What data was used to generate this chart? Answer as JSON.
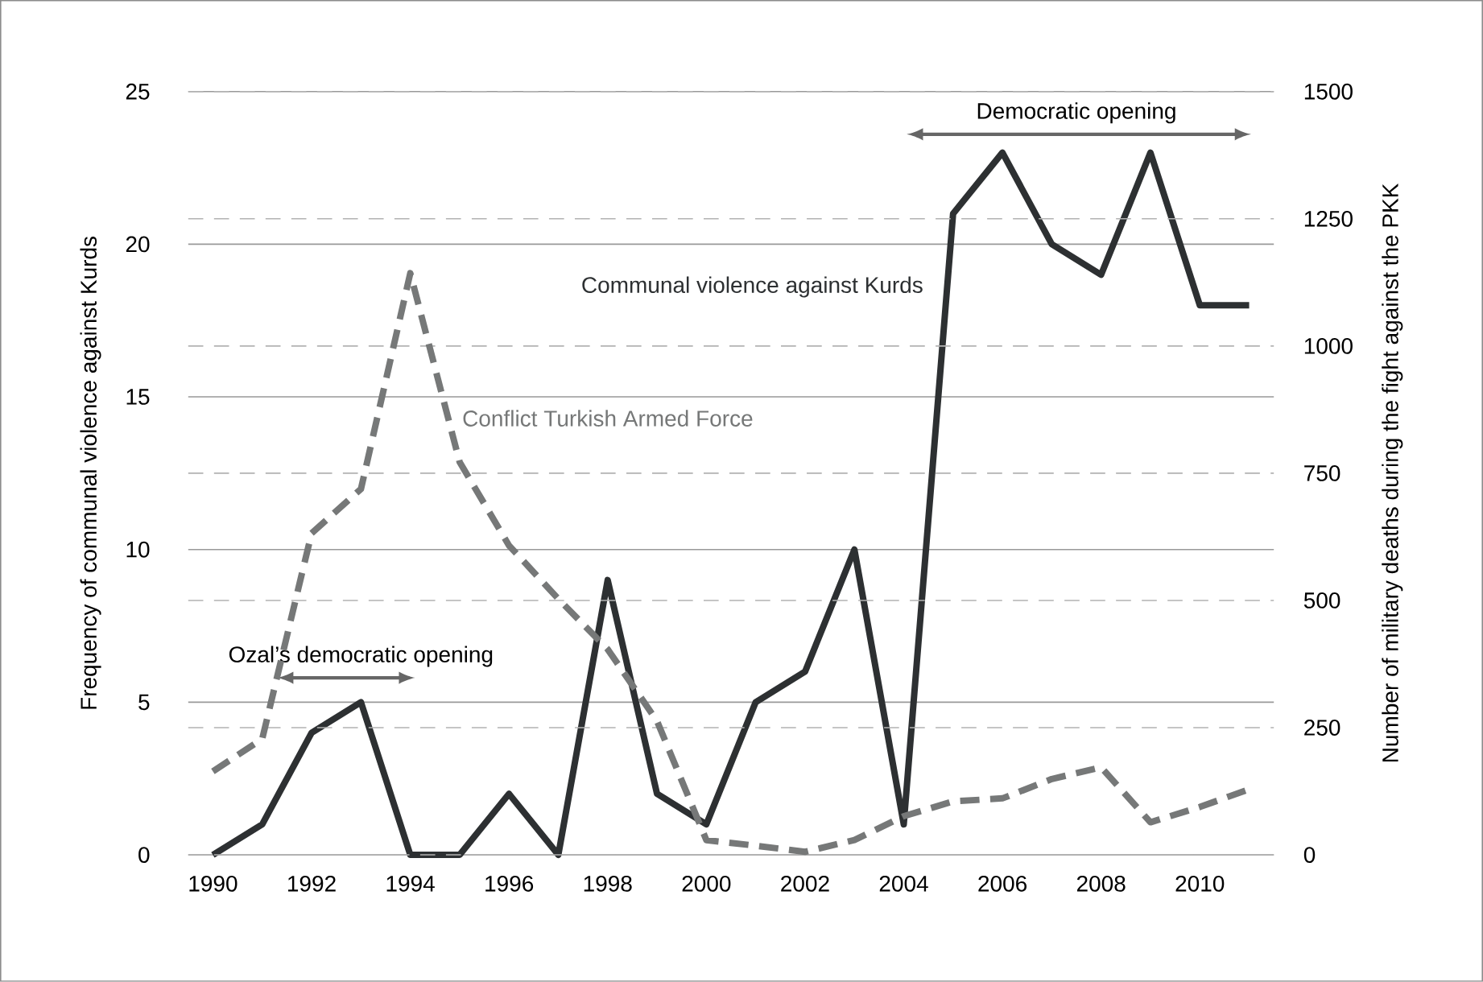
{
  "chart_data": {
    "type": "line",
    "ylabel": "Frequency of communal violence against Kurds",
    "y2label": "Number of military deaths during the fight against the PKK",
    "x": [
      1990,
      1991,
      1992,
      1993,
      1994,
      1995,
      1996,
      1997,
      1998,
      1999,
      2000,
      2001,
      2002,
      2003,
      2004,
      2005,
      2006,
      2007,
      2008,
      2009,
      2010,
      2011
    ],
    "xlim": [
      1989.5,
      2011.5
    ],
    "xticks": [
      1990,
      1992,
      1994,
      1996,
      1998,
      2000,
      2002,
      2004,
      2006,
      2008,
      2010
    ],
    "ylim": [
      0,
      25
    ],
    "yticks": [
      0,
      5,
      10,
      15,
      20,
      25
    ],
    "y2lim": [
      0,
      1500
    ],
    "y2ticks": [
      0,
      250,
      500,
      750,
      1000,
      1250,
      1500
    ],
    "grid": true,
    "series": [
      {
        "name": "Communal violence against Kurds",
        "color": "#2d3032",
        "line_style": "solid",
        "values": [
          0,
          1,
          4,
          5,
          0,
          0,
          2,
          0,
          9,
          2,
          1,
          5,
          6,
          10,
          1,
          21,
          23,
          20,
          19,
          23,
          18,
          18
        ]
      },
      {
        "name": "Conflict Turkish Armed Force",
        "color": "#767878",
        "line_style": "dashed",
        "axis": "y2",
        "values": [
          164,
          228,
          632,
          719,
          1143,
          772,
          608,
          503,
          404,
          263,
          29,
          18,
          6,
          29,
          76,
          105,
          111,
          149,
          172,
          64,
          94,
          129
        ]
      }
    ],
    "annotations": [
      "Ozal’s democratic opening",
      "Democratic opening"
    ]
  }
}
